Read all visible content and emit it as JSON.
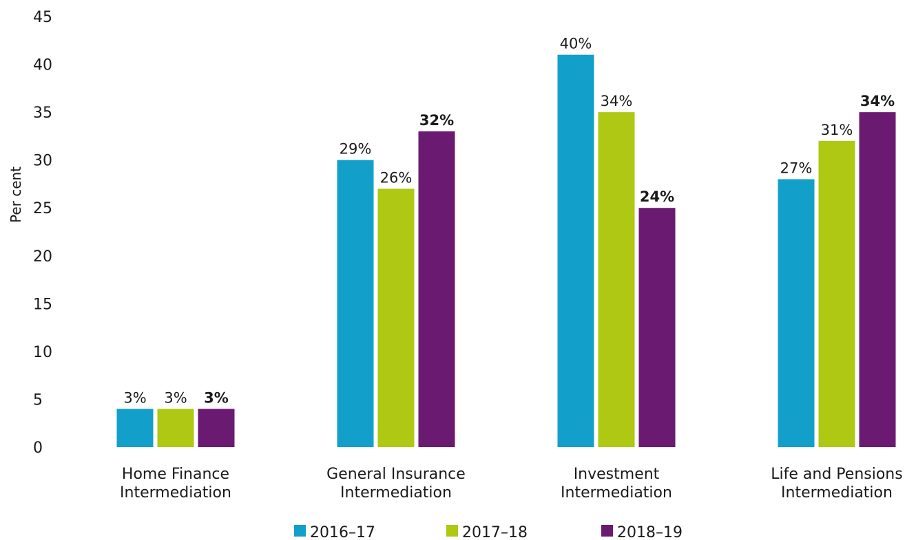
{
  "chart_data": {
    "type": "bar",
    "ylabel": "Per cent",
    "ylim": [
      0,
      45
    ],
    "yticks": [
      0,
      5,
      10,
      15,
      20,
      25,
      30,
      35,
      40,
      45
    ],
    "grid": false,
    "legend_position": "bottom",
    "categories": [
      [
        "Home Finance",
        "Intermediation"
      ],
      [
        "General Insurance",
        "Intermediation"
      ],
      [
        "Investment",
        "Intermediation"
      ],
      [
        "Life and Pensions",
        "Intermediation"
      ]
    ],
    "series": [
      {
        "name": "2016–17",
        "color": "#12a0cb",
        "values": [
          3,
          29,
          40,
          27
        ],
        "labels": [
          "3%",
          "29%",
          "40%",
          "27%"
        ],
        "bold": false
      },
      {
        "name": "2017–18",
        "color": "#aec813",
        "values": [
          3,
          26,
          34,
          31
        ],
        "labels": [
          "3%",
          "26%",
          "34%",
          "31%"
        ],
        "bold": false
      },
      {
        "name": "2018–19",
        "color": "#6b1a72",
        "values": [
          3,
          32,
          24,
          34
        ],
        "labels": [
          "3%",
          "32%",
          "24%",
          "34%"
        ],
        "bold": true
      }
    ]
  }
}
